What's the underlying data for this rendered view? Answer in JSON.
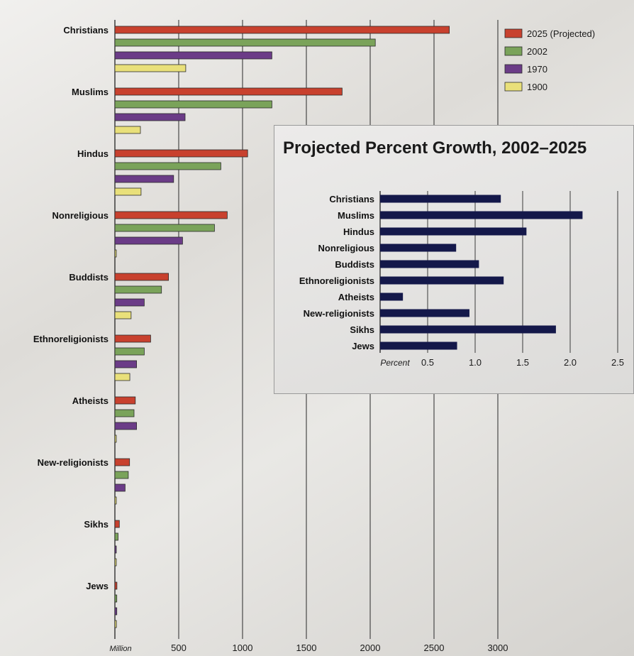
{
  "chart_data": [
    {
      "type": "bar",
      "orientation": "horizontal",
      "categories": [
        "Christians",
        "Muslims",
        "Hindus",
        "Nonreligious",
        "Buddists",
        "Ethnoreligionists",
        "Atheists",
        "New-religionists",
        "Sikhs",
        "Jews"
      ],
      "series": [
        {
          "name": "2025 (Projected)",
          "color": "#c8412e",
          "values": [
            2620,
            1780,
            1040,
            880,
            420,
            280,
            160,
            115,
            35,
            16
          ]
        },
        {
          "name": "2002",
          "color": "#7aa35a",
          "values": [
            2040,
            1230,
            830,
            780,
            365,
            230,
            150,
            105,
            25,
            15
          ]
        },
        {
          "name": "1970",
          "color": "#6b3c87",
          "values": [
            1230,
            550,
            460,
            530,
            230,
            170,
            170,
            80,
            10,
            15
          ]
        },
        {
          "name": "1900",
          "color": "#e9e07a",
          "values": [
            555,
            200,
            205,
            4,
            127,
            117,
            0,
            6,
            3,
            12
          ]
        }
      ],
      "xlabel": "Million",
      "ticks": [
        500,
        1000,
        1500,
        2000,
        2500,
        3000
      ],
      "xlim": [
        0,
        3000
      ],
      "legend_position": "top-right",
      "grid": true
    },
    {
      "type": "bar",
      "orientation": "horizontal",
      "title": "Projected Percent Growth, 2002–2025",
      "categories": [
        "Christians",
        "Muslims",
        "Hindus",
        "Nonreligious",
        "Buddists",
        "Ethnoreligionists",
        "Atheists",
        "New-religionists",
        "Sikhs",
        "Jews"
      ],
      "series": [
        {
          "color": "#14184a",
          "values": [
            1.27,
            2.13,
            1.54,
            0.8,
            1.04,
            1.3,
            0.24,
            0.94,
            1.85,
            0.81
          ]
        }
      ],
      "xlabel": "Percent",
      "ticks": [
        "0.5",
        "1.0",
        "1.5",
        "2.0",
        "2.5"
      ],
      "xlim": [
        0,
        2.5
      ],
      "grid": true
    }
  ]
}
